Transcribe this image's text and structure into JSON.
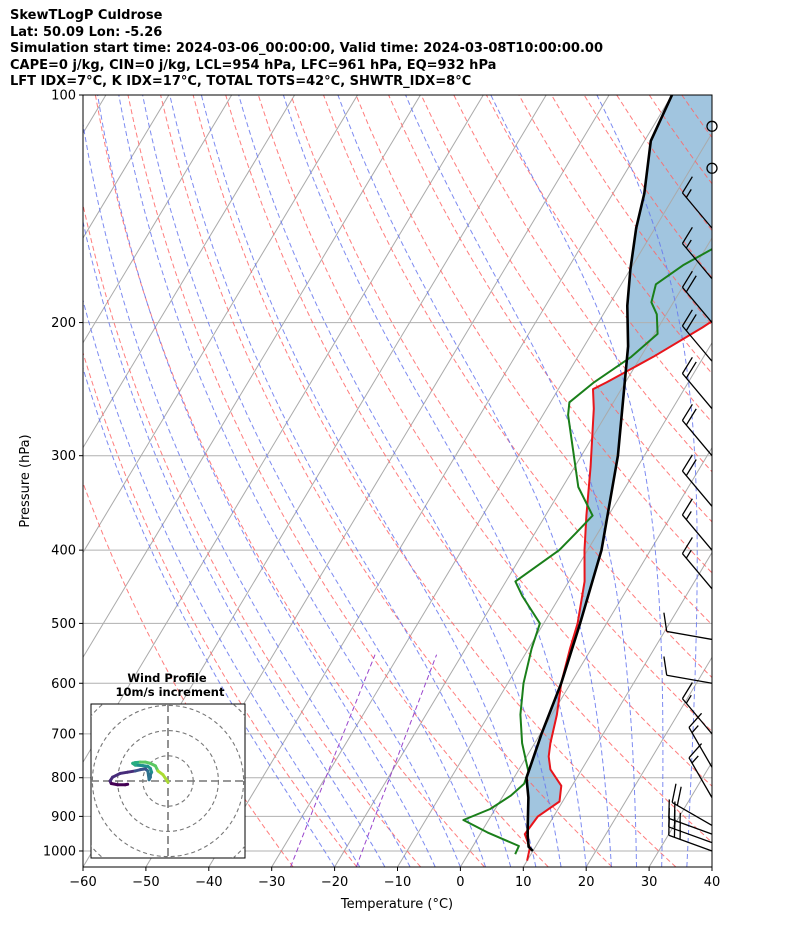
{
  "title_lines": [
    "SkewTLogP Culdrose",
    "Lat: 50.09   Lon: -5.26",
    "Simulation start time: 2024-03-06_00:00:00, Valid time: 2024-03-08T10:00:00.00",
    "CAPE=0 j/kg, CIN=0 j/kg, LCL=954 hPa, LFC=961 hPa, EQ=932 hPa",
    "LFT IDX=7°C, K IDX=17°C, TOTAL TOTS=42°C, SHWTR_IDX=8°C"
  ],
  "chart_data": [
    {
      "type": "line",
      "chart": "skew-t log-p",
      "xlabel": "Temperature (°C)",
      "ylabel": "Pressure (hPa)",
      "xlim": [
        -60,
        40
      ],
      "ylim": [
        1050,
        100
      ],
      "y_scale": "log",
      "grid": true,
      "x_ticks": [
        "−60",
        "−50",
        "−40",
        "−30",
        "−20",
        "−10",
        "0",
        "10",
        "20",
        "30",
        "40"
      ],
      "y_ticks": [
        "100",
        "200",
        "300",
        "400",
        "500",
        "600",
        "700",
        "800",
        "900",
        "1000"
      ],
      "y_tick_values": [
        100,
        200,
        300,
        400,
        500,
        600,
        700,
        800,
        900,
        1000
      ],
      "colors": {
        "temperature": "#e8151b",
        "dewpoint": "#1a7f1a",
        "parcel": "#000000",
        "cape_fill": "#a1c5df",
        "dry_adiabat": "#ff6666",
        "moist_adiabat": "#6677ee",
        "mixing_ratio": "#9944cc",
        "isotherm": "#aaaaaa"
      },
      "series": [
        {
          "key": "temperature",
          "points": [
            [
              10.0,
              1030
            ],
            [
              9.2,
              990
            ],
            [
              7.1,
              950
            ],
            [
              7.5,
              900
            ],
            [
              9.5,
              860
            ],
            [
              8.3,
              820
            ],
            [
              5.0,
              780
            ],
            [
              3.5,
              750
            ],
            [
              2.5,
              720
            ],
            [
              0.8,
              660
            ],
            [
              -1.5,
              600
            ],
            [
              -3.4,
              540
            ],
            [
              -4.6,
              500
            ],
            [
              -7.5,
              440
            ],
            [
              -10.5,
              400
            ],
            [
              -13.5,
              360
            ],
            [
              -17.5,
              310
            ],
            [
              -22.5,
              260
            ],
            [
              -24.5,
              245
            ],
            [
              -23,
              240
            ],
            [
              -18,
              222
            ],
            [
              -13,
              203
            ],
            [
              -9,
              187
            ],
            [
              -7.5,
              175
            ],
            [
              -7,
              165
            ],
            [
              -6.2,
              150
            ],
            [
              -4.5,
              140
            ],
            [
              -2,
              131
            ],
            [
              0,
              123
            ],
            [
              2,
              115
            ],
            [
              4,
              109
            ],
            [
              7,
              100
            ]
          ]
        },
        {
          "key": "dewpoint",
          "points": [
            [
              7.5,
              1010
            ],
            [
              7.3,
              985
            ],
            [
              1.0,
              945
            ],
            [
              -4.0,
              910
            ],
            [
              -0.8,
              880
            ],
            [
              1.2,
              845
            ],
            [
              2.2,
              815
            ],
            [
              1.7,
              785
            ],
            [
              0.3,
              760
            ],
            [
              -2.0,
              720
            ],
            [
              -5.0,
              660
            ],
            [
              -7.5,
              600
            ],
            [
              -9.5,
              540
            ],
            [
              -10.6,
              500
            ],
            [
              -16,
              460
            ],
            [
              -18.5,
              440
            ],
            [
              -14.5,
              400
            ],
            [
              -13.5,
              380
            ],
            [
              -12.5,
              360
            ],
            [
              -17.5,
              330
            ],
            [
              -22.5,
              290
            ],
            [
              -26.0,
              265
            ],
            [
              -27.0,
              255
            ],
            [
              -25.0,
              240
            ],
            [
              -21.5,
              222
            ],
            [
              -19.5,
              207
            ],
            [
              -21.5,
              195
            ],
            [
              -23.5,
              188
            ],
            [
              -24.5,
              178
            ],
            [
              -22,
              168
            ],
            [
              -17,
              155
            ],
            [
              -10,
              140
            ],
            [
              -5,
              127
            ],
            [
              -1,
              115
            ],
            [
              1.5,
              100
            ]
          ]
        },
        {
          "key": "parcel",
          "points": [
            [
              10.0,
              1000
            ],
            [
              8.9,
              987
            ],
            [
              7.7,
              954
            ],
            [
              6.9,
              930
            ],
            [
              4.2,
              850
            ],
            [
              2.0,
              800
            ],
            [
              0.2,
              700
            ],
            [
              -1.5,
              600
            ],
            [
              -4.2,
              500
            ],
            [
              -7.8,
              400
            ],
            [
              -14.2,
              300
            ],
            [
              -23,
              215
            ],
            [
              -27,
              190
            ],
            [
              -30,
              170
            ],
            [
              -33,
              150
            ],
            [
              -35,
              135
            ],
            [
              -39,
              115
            ],
            [
              -40,
              100
            ]
          ]
        }
      ],
      "wind_barbs": [
        {
          "p": 1000,
          "spd_kt": 25,
          "dir_deg": 290
        },
        {
          "p": 975,
          "spd_kt": 25,
          "dir_deg": 290
        },
        {
          "p": 950,
          "spd_kt": 25,
          "dir_deg": 290
        },
        {
          "p": 925,
          "spd_kt": 20,
          "dir_deg": 300
        },
        {
          "p": 850,
          "spd_kt": 15,
          "dir_deg": 330
        },
        {
          "p": 775,
          "spd_kt": 15,
          "dir_deg": 330
        },
        {
          "p": 700,
          "spd_kt": 15,
          "dir_deg": 320
        },
        {
          "p": 600,
          "spd_kt": 10,
          "dir_deg": 280
        },
        {
          "p": 525,
          "spd_kt": 10,
          "dir_deg": 280
        },
        {
          "p": 450,
          "spd_kt": 15,
          "dir_deg": 320
        },
        {
          "p": 400,
          "spd_kt": 15,
          "dir_deg": 320
        },
        {
          "p": 350,
          "spd_kt": 20,
          "dir_deg": 320
        },
        {
          "p": 300,
          "spd_kt": 20,
          "dir_deg": 320
        },
        {
          "p": 260,
          "spd_kt": 20,
          "dir_deg": 320
        },
        {
          "p": 225,
          "spd_kt": 20,
          "dir_deg": 320
        },
        {
          "p": 200,
          "spd_kt": 20,
          "dir_deg": 320
        },
        {
          "p": 175,
          "spd_kt": 15,
          "dir_deg": 320
        },
        {
          "p": 150,
          "spd_kt": 15,
          "dir_deg": 320
        },
        {
          "p": 125,
          "spd_kt": 0,
          "dir_deg": 0
        },
        {
          "p": 110,
          "spd_kt": 0,
          "dir_deg": 0
        }
      ]
    },
    {
      "type": "line",
      "chart": "hodograph",
      "title": "Wind Profile",
      "subtitle": "10m/s increment",
      "ring_increment": 10,
      "rings": [
        10,
        20,
        30,
        40
      ],
      "trace_uv": [
        [
          0,
          -0.5
        ],
        [
          -1,
          1
        ],
        [
          -2,
          2.5
        ],
        [
          -4,
          4
        ],
        [
          -5,
          6
        ],
        [
          -7,
          7
        ],
        [
          -9,
          7.5
        ],
        [
          -11,
          7.5
        ],
        [
          -13,
          7.3
        ],
        [
          -14,
          7.0
        ],
        [
          -13,
          6.3
        ],
        [
          -10,
          6.1
        ],
        [
          -8,
          5.8
        ],
        [
          -7,
          5.0
        ],
        [
          -6.5,
          3.5
        ],
        [
          -7,
          2.5
        ],
        [
          -7,
          1.5
        ],
        [
          -7.5,
          0.5
        ],
        [
          -8,
          4.0
        ],
        [
          -9,
          4.8
        ],
        [
          -11,
          4.5
        ],
        [
          -13,
          4.0
        ],
        [
          -16,
          3.5
        ],
        [
          -19,
          3.0
        ],
        [
          -22,
          1.5
        ],
        [
          -23,
          0
        ],
        [
          -22.5,
          -1.0
        ],
        [
          -20,
          -1.5
        ],
        [
          -17,
          -1.5
        ],
        [
          -16,
          -1.3
        ]
      ]
    }
  ]
}
